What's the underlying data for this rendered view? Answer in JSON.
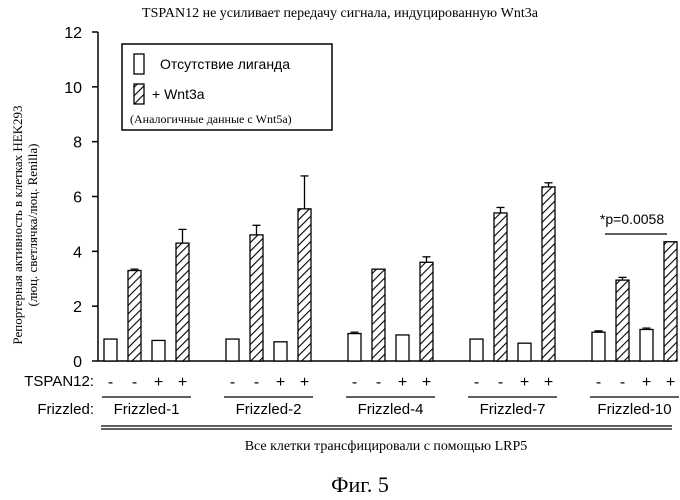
{
  "chart_data": {
    "type": "bar",
    "title": "TSPAN12 не усиливает передачу сигнала, индуцированную Wnt3a",
    "ylabel_line1": "Репортерная активность в клетках HEK293",
    "ylabel_line2": "(люц. светлячка/люц. Renilla)",
    "ylim": [
      0,
      12
    ],
    "yticks": [
      "0",
      "2",
      "4",
      "6",
      "8",
      "10",
      "12"
    ],
    "legend": {
      "entries": [
        "Отсутствие лиганда",
        "+ Wnt3a"
      ],
      "note": "(Аналогичные данные с Wnt5a)"
    },
    "row_labels": {
      "tspan": "TSPAN12:",
      "frizzled": "Frizzled:"
    },
    "groups": [
      {
        "name": "Frizzled-1",
        "bars": [
          {
            "tspan": "-",
            "ligand": "none",
            "value": 0.8,
            "err": 0
          },
          {
            "tspan": "-",
            "ligand": "wnt3a",
            "value": 3.3,
            "err": 0.05
          },
          {
            "tspan": "+",
            "ligand": "none",
            "value": 0.75,
            "err": 0
          },
          {
            "tspan": "+",
            "ligand": "wnt3a",
            "value": 4.3,
            "err": 0.5
          }
        ]
      },
      {
        "name": "Frizzled-2",
        "bars": [
          {
            "tspan": "-",
            "ligand": "none",
            "value": 0.8,
            "err": 0
          },
          {
            "tspan": "-",
            "ligand": "wnt3a",
            "value": 4.6,
            "err": 0.35
          },
          {
            "tspan": "+",
            "ligand": "none",
            "value": 0.7,
            "err": 0
          },
          {
            "tspan": "+",
            "ligand": "wnt3a",
            "value": 5.55,
            "err": 1.2
          }
        ]
      },
      {
        "name": "Frizzled-4",
        "bars": [
          {
            "tspan": "-",
            "ligand": "none",
            "value": 1.0,
            "err": 0.05
          },
          {
            "tspan": "-",
            "ligand": "wnt3a",
            "value": 3.35,
            "err": 0
          },
          {
            "tspan": "+",
            "ligand": "none",
            "value": 0.95,
            "err": 0
          },
          {
            "tspan": "+",
            "ligand": "wnt3a",
            "value": 3.6,
            "err": 0.2
          }
        ]
      },
      {
        "name": "Frizzled-7",
        "bars": [
          {
            "tspan": "-",
            "ligand": "none",
            "value": 0.8,
            "err": 0
          },
          {
            "tspan": "-",
            "ligand": "wnt3a",
            "value": 5.4,
            "err": 0.2
          },
          {
            "tspan": "+",
            "ligand": "none",
            "value": 0.65,
            "err": 0
          },
          {
            "tspan": "+",
            "ligand": "wnt3a",
            "value": 6.35,
            "err": 0.15
          }
        ]
      },
      {
        "name": "Frizzled-10",
        "bars": [
          {
            "tspan": "-",
            "ligand": "none",
            "value": 1.05,
            "err": 0.05
          },
          {
            "tspan": "-",
            "ligand": "wnt3a",
            "value": 2.95,
            "err": 0.1
          },
          {
            "tspan": "+",
            "ligand": "none",
            "value": 1.15,
            "err": 0.05
          },
          {
            "tspan": "+",
            "ligand": "wnt3a",
            "value": 4.35,
            "err": 0
          }
        ]
      }
    ],
    "annotation": "*p=0.0058",
    "footer": "Все клетки трансфицировали с помощью LRP5"
  },
  "caption": "Фиг. 5"
}
